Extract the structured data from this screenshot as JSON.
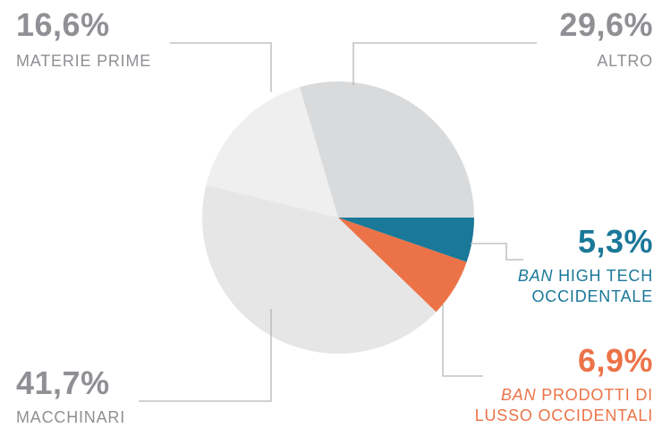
{
  "chart_data": {
    "type": "pie",
    "slices": [
      {
        "value": 29.6,
        "pct_label": "29,6%",
        "name": "ALTRO",
        "color": "#d9dadc"
      },
      {
        "value": 16.6,
        "pct_label": "16,6%",
        "name": "MATERIE PRIME",
        "color": "#efefef"
      },
      {
        "value": 41.7,
        "pct_label": "41,7%",
        "name": "MACCHINARI",
        "color": "#e6e6e7"
      },
      {
        "value": 6.9,
        "pct_label": "6,9%",
        "name_em": "BAN",
        "name_rest_1": "PRODOTTI DI",
        "name_rest_2": "LUSSO OCCIDENTALI",
        "color": "#ec7347"
      },
      {
        "value": 5.3,
        "pct_label": "5,3%",
        "name_em": "BAN",
        "name_rest_1": "HIGH TECH",
        "name_rest_2": "OCCIDENTALE",
        "color": "#1a7898"
      }
    ],
    "label_colors": {
      "neutral": "#8e9094",
      "high_tech": "#1a7898",
      "luxury": "#ec7347"
    },
    "leader_color": "#b5b6b8"
  }
}
